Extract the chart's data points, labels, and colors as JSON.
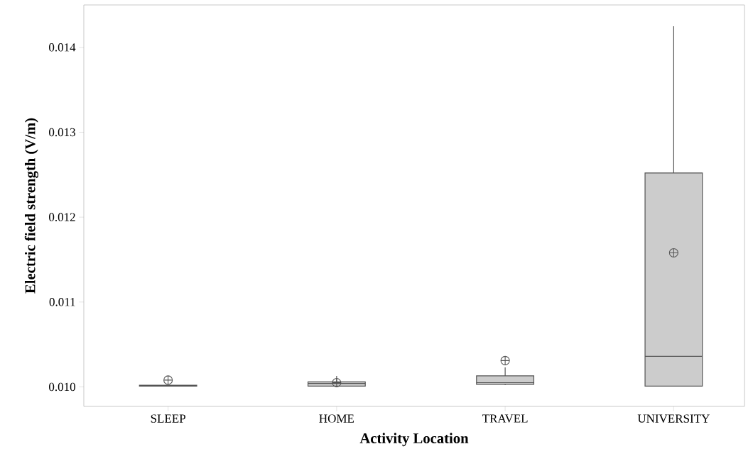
{
  "chart_data": {
    "type": "box",
    "xlabel": "Activity Location",
    "ylabel": "Electric field strength (V/m)",
    "categories": [
      "SLEEP",
      "HOME",
      "TRAVEL",
      "UNIVERSITY"
    ],
    "color": "#cccccc",
    "boxes": [
      {
        "low": 0.01001,
        "q1": 0.01001,
        "median": 0.01001,
        "q3": 0.01002,
        "high": 0.01002,
        "mean": 0.01008
      },
      {
        "low": 0.01001,
        "q1": 0.01001,
        "median": 0.01004,
        "q3": 0.01006,
        "high": 0.01013,
        "mean": 0.01005
      },
      {
        "low": 0.01002,
        "q1": 0.01003,
        "median": 0.01005,
        "q3": 0.01013,
        "high": 0.01023,
        "mean": 0.01031
      },
      {
        "low": 0.01001,
        "q1": 0.01001,
        "median": 0.01036,
        "q3": 0.01252,
        "high": 0.01425,
        "mean": 0.01158
      }
    ],
    "ylim": [
      0.00977,
      0.0145
    ],
    "yticks": [
      {
        "value": 0.01,
        "label": "0.010"
      },
      0.011,
      0.012,
      0.013,
      0.014
    ],
    "grid": false
  }
}
